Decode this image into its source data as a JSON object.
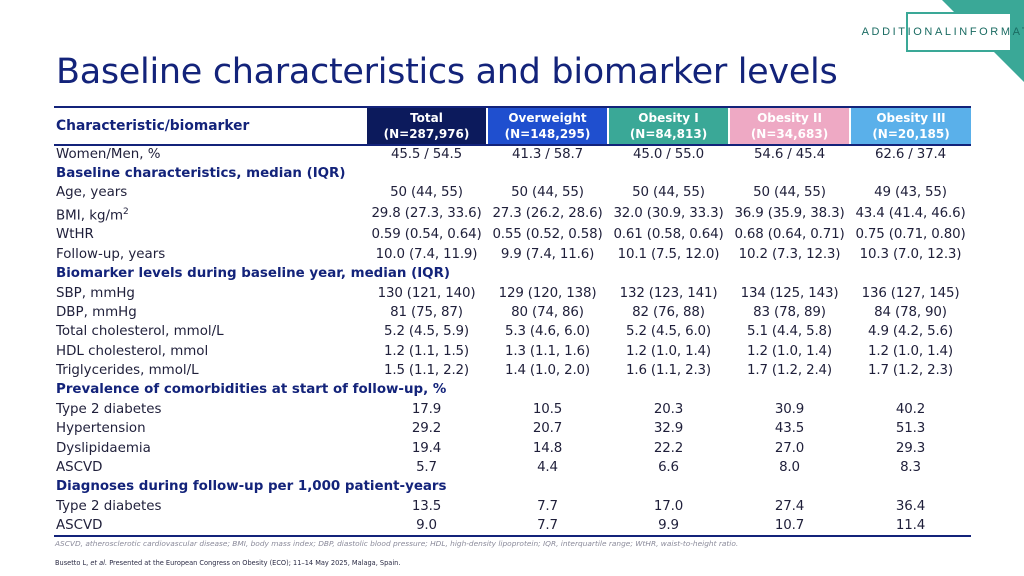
{
  "badge": {
    "line1": "ADDITIONAL",
    "line2": "INFORMATION"
  },
  "title": "Baseline characteristics and biomarker levels",
  "colors": {
    "title_navy": "#13237a",
    "teal_accent": "#3aa897",
    "total_header": "#0c1a5c",
    "overweight_header": "#1f4fcf",
    "obesity1_header": "#3aa897",
    "obesity2_header": "#eea9c4",
    "obesity3_header": "#5ab0ea"
  },
  "table": {
    "header_label": "Characteristic/biomarker",
    "groups": [
      {
        "name": "Total",
        "n": "(N=287,976)",
        "color": "#0c1a5c"
      },
      {
        "name": "Overweight",
        "n": "(N=148,295)",
        "color": "#1f4fcf"
      },
      {
        "name": "Obesity I",
        "n": "(N=84,813)",
        "color": "#3aa897"
      },
      {
        "name": "Obesity II",
        "n": "(N=34,683)",
        "color": "#eea9c4"
      },
      {
        "name": "Obesity III",
        "n": "(N=20,185)",
        "color": "#5ab0ea"
      }
    ],
    "rows": [
      {
        "label": "Women/Men, %",
        "values": [
          "45.5 / 54.5",
          "41.3 / 58.7",
          "45.0 / 55.0",
          "54.6 / 45.4",
          "62.6 / 37.4"
        ]
      },
      {
        "section": "Baseline characteristics, median (IQR)"
      },
      {
        "label": "Age, years",
        "values": [
          "50 (44, 55)",
          "50 (44, 55)",
          "50 (44, 55)",
          "50 (44, 55)",
          "49 (43, 55)"
        ]
      },
      {
        "label": "BMI, kg/m",
        "sup": "2",
        "values": [
          "29.8 (27.3, 33.6)",
          "27.3 (26.2, 28.6)",
          "32.0 (30.9, 33.3)",
          "36.9 (35.9, 38.3)",
          "43.4 (41.4, 46.6)"
        ]
      },
      {
        "label": "WtHR",
        "values": [
          "0.59 (0.54, 0.64)",
          "0.55 (0.52, 0.58)",
          "0.61 (0.58, 0.64)",
          "0.68 (0.64, 0.71)",
          "0.75 (0.71, 0.80)"
        ]
      },
      {
        "label": "Follow-up, years",
        "values": [
          "10.0 (7.4, 11.9)",
          "9.9 (7.4, 11.6)",
          "10.1 (7.5, 12.0)",
          "10.2 (7.3, 12.3)",
          "10.3 (7.0, 12.3)"
        ]
      },
      {
        "section": "Biomarker levels during baseline year, median (IQR)"
      },
      {
        "label": "SBP, mmHg",
        "values": [
          "130 (121, 140)",
          "129 (120, 138)",
          "132 (123, 141)",
          "134 (125, 143)",
          "136 (127, 145)"
        ]
      },
      {
        "label": "DBP, mmHg",
        "values": [
          "81 (75, 87)",
          "80 (74, 86)",
          "82 (76, 88)",
          "83 (78, 89)",
          "84 (78, 90)"
        ]
      },
      {
        "label": "Total cholesterol, mmol/L",
        "values": [
          "5.2 (4.5, 5.9)",
          "5.3 (4.6, 6.0)",
          "5.2 (4.5, 6.0)",
          "5.1 (4.4, 5.8)",
          "4.9 (4.2, 5.6)"
        ]
      },
      {
        "label": "HDL cholesterol, mmol",
        "values": [
          "1.2 (1.1, 1.5)",
          "1.3 (1.1, 1.6)",
          "1.2 (1.0, 1.4)",
          "1.2 (1.0, 1.4)",
          "1.2 (1.0, 1.4)"
        ]
      },
      {
        "label": "Triglycerides, mmol/L",
        "values": [
          "1.5 (1.1, 2.2)",
          "1.4 (1.0, 2.0)",
          "1.6 (1.1, 2.3)",
          "1.7 (1.2, 2.4)",
          "1.7 (1.2, 2.3)"
        ]
      },
      {
        "section": "Prevalence of comorbidities at start of follow-up, %"
      },
      {
        "label": "Type 2 diabetes",
        "values": [
          "17.9",
          "10.5",
          "20.3",
          "30.9",
          "40.2"
        ]
      },
      {
        "label": "Hypertension",
        "values": [
          "29.2",
          "20.7",
          "32.9",
          "43.5",
          "51.3"
        ]
      },
      {
        "label": "Dyslipidaemia",
        "values": [
          "19.4",
          "14.8",
          "22.2",
          "27.0",
          "29.3"
        ]
      },
      {
        "label": "ASCVD",
        "values": [
          "5.7",
          "4.4",
          "6.6",
          "8.0",
          "8.3"
        ]
      },
      {
        "section": "Diagnoses during follow-up per 1,000 patient-years"
      },
      {
        "label": "Type 2 diabetes",
        "values": [
          "13.5",
          "7.7",
          "17.0",
          "27.4",
          "36.4"
        ]
      },
      {
        "label": "ASCVD",
        "values": [
          "9.0",
          "7.7",
          "9.9",
          "10.7",
          "11.4"
        ]
      }
    ]
  },
  "footnote": "ASCVD, atherosclerotic cardiovascular disease; BMI, body mass index; DBP, diastolic blood pressure; HDL, high-density lipoprotein; IQR, interquartile range; WtHR, waist-to-height ratio.",
  "citation": {
    "author": "Busetto L, ",
    "etal": "et al.",
    "rest": " Presented at the European Congress on Obesity (ECO); 11–14 May 2025, Malaga, Spain."
  }
}
